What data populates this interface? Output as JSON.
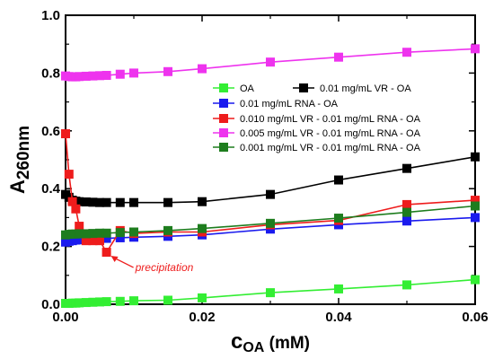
{
  "chart_data": {
    "type": "line",
    "xlabel_main": "c",
    "xlabel_sub": "OA",
    "xlabel_unit": " (mM)",
    "ylabel_main": "A",
    "ylabel_sub": "260nm",
    "xlim": [
      0,
      0.06
    ],
    "ylim": [
      0,
      1.0
    ],
    "xticks": [
      0.0,
      0.02,
      0.04,
      0.06
    ],
    "xtick_labels": [
      "0.00",
      "0.02",
      "0.04",
      "0.06"
    ],
    "yticks": [
      0.0,
      0.2,
      0.4,
      0.6,
      0.8,
      1.0
    ],
    "ytick_labels": [
      "0.0",
      "0.2",
      "0.4",
      "0.6",
      "0.8",
      "1.0"
    ],
    "legend_position": "center-right",
    "series": [
      {
        "name": "OA",
        "color": "#33ee33",
        "x": [
          0,
          0.0005,
          0.001,
          0.0015,
          0.002,
          0.003,
          0.004,
          0.005,
          0.006,
          0.008,
          0.01,
          0.015,
          0.02,
          0.03,
          0.04,
          0.05,
          0.06
        ],
        "y": [
          0.003,
          0.003,
          0.004,
          0.004,
          0.005,
          0.006,
          0.007,
          0.008,
          0.009,
          0.01,
          0.012,
          0.014,
          0.022,
          0.04,
          0.053,
          0.067,
          0.085
        ]
      },
      {
        "name": "0.01 mg/mL VR - OA",
        "color": "#000000",
        "x": [
          0,
          0.0005,
          0.001,
          0.0015,
          0.002,
          0.003,
          0.004,
          0.005,
          0.006,
          0.008,
          0.01,
          0.015,
          0.02,
          0.03,
          0.04,
          0.05,
          0.06
        ],
        "y": [
          0.38,
          0.37,
          0.36,
          0.357,
          0.355,
          0.354,
          0.353,
          0.352,
          0.352,
          0.352,
          0.352,
          0.352,
          0.355,
          0.38,
          0.43,
          0.47,
          0.51
        ]
      },
      {
        "name": "0.01 mg/mL RNA - OA",
        "color": "#1a1aee",
        "x": [
          0,
          0.0005,
          0.001,
          0.0015,
          0.002,
          0.003,
          0.004,
          0.005,
          0.006,
          0.008,
          0.01,
          0.015,
          0.02,
          0.03,
          0.04,
          0.05,
          0.06
        ],
        "y": [
          0.215,
          0.218,
          0.22,
          0.222,
          0.223,
          0.225,
          0.226,
          0.227,
          0.228,
          0.23,
          0.232,
          0.235,
          0.24,
          0.26,
          0.275,
          0.288,
          0.3
        ]
      },
      {
        "name": "0.010 mg/mL VR - 0.01 mg/mL RNA - OA",
        "color": "#ee1c1c",
        "x": [
          0,
          0.0005,
          0.001,
          0.0015,
          0.002,
          0.003,
          0.004,
          0.005,
          0.006,
          0.008,
          0.01,
          0.015,
          0.02,
          0.03,
          0.04,
          0.05,
          0.06
        ],
        "y": [
          0.59,
          0.45,
          0.355,
          0.33,
          0.27,
          0.22,
          0.22,
          0.22,
          0.18,
          0.255,
          0.245,
          0.25,
          0.25,
          0.275,
          0.29,
          0.345,
          0.36
        ]
      },
      {
        "name": "0.005 mg/mL VR - 0.01 mg/mL RNA - OA",
        "color": "#ee33ee",
        "x": [
          0,
          0.0005,
          0.001,
          0.0015,
          0.002,
          0.003,
          0.004,
          0.005,
          0.006,
          0.008,
          0.01,
          0.015,
          0.02,
          0.03,
          0.04,
          0.05,
          0.06
        ],
        "y": [
          0.79,
          0.788,
          0.787,
          0.787,
          0.788,
          0.789,
          0.79,
          0.791,
          0.792,
          0.796,
          0.8,
          0.805,
          0.815,
          0.838,
          0.855,
          0.872,
          0.884
        ]
      },
      {
        "name": "0.001 mg/mL VR - 0.01 mg/mL RNA - OA",
        "color": "#1e7d1e",
        "x": [
          0,
          0.0005,
          0.001,
          0.0015,
          0.002,
          0.003,
          0.004,
          0.005,
          0.006,
          0.008,
          0.01,
          0.015,
          0.02,
          0.03,
          0.04,
          0.05,
          0.06
        ],
        "y": [
          0.24,
          0.242,
          0.243,
          0.243,
          0.244,
          0.244,
          0.245,
          0.246,
          0.246,
          0.248,
          0.25,
          0.255,
          0.262,
          0.28,
          0.298,
          0.318,
          0.34
        ]
      }
    ],
    "annotation": {
      "text": "precipitation",
      "color": "#ee1c1c",
      "arrow_target": [
        0.006,
        0.18
      ]
    }
  }
}
